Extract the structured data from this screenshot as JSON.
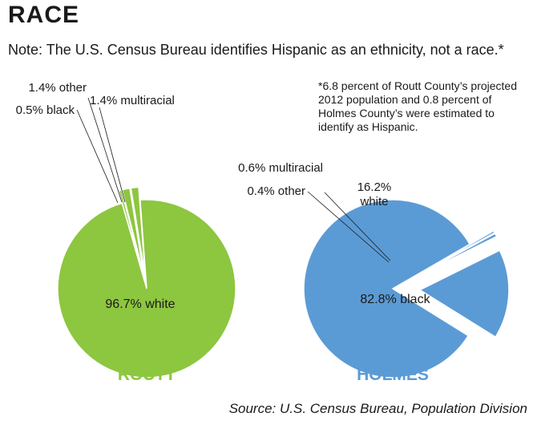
{
  "header": {
    "title": "RACE",
    "note": "Note: The U.S. Census Bureau identifies Hispanic as an ethnicity, not a race.*"
  },
  "footnote": "*6.8 percent of Routt County’s projected 2012 population and 0.8 percent of Holmes County’s were estimated to identify as Hispanic.",
  "source": "Source: U.S. Census Bureau, Population Division",
  "chart_data": [
    {
      "type": "pie",
      "title": "ROUTT",
      "color": "#8dc63f",
      "slices": [
        {
          "label": "96.7% white",
          "category": "white",
          "value": 96.7,
          "exploded": false
        },
        {
          "label": "0.5% black",
          "category": "black",
          "value": 0.5,
          "exploded": true
        },
        {
          "label": "1.4% other",
          "category": "other",
          "value": 1.4,
          "exploded": true
        },
        {
          "label": "1.4% multiracial",
          "category": "multiracial",
          "value": 1.4,
          "exploded": true
        }
      ]
    },
    {
      "type": "pie",
      "title": "HOLMES",
      "color": "#5b9bd5",
      "slices": [
        {
          "label": "82.8% black",
          "category": "black",
          "value": 82.8,
          "exploded": false
        },
        {
          "label": "0.4% other",
          "category": "other",
          "value": 0.4,
          "exploded": true
        },
        {
          "label": "0.6% multiracial",
          "category": "multiracial",
          "value": 0.6,
          "exploded": true
        },
        {
          "label": "16.2%\nwhite",
          "category": "white",
          "value": 16.2,
          "exploded": true
        }
      ]
    }
  ]
}
